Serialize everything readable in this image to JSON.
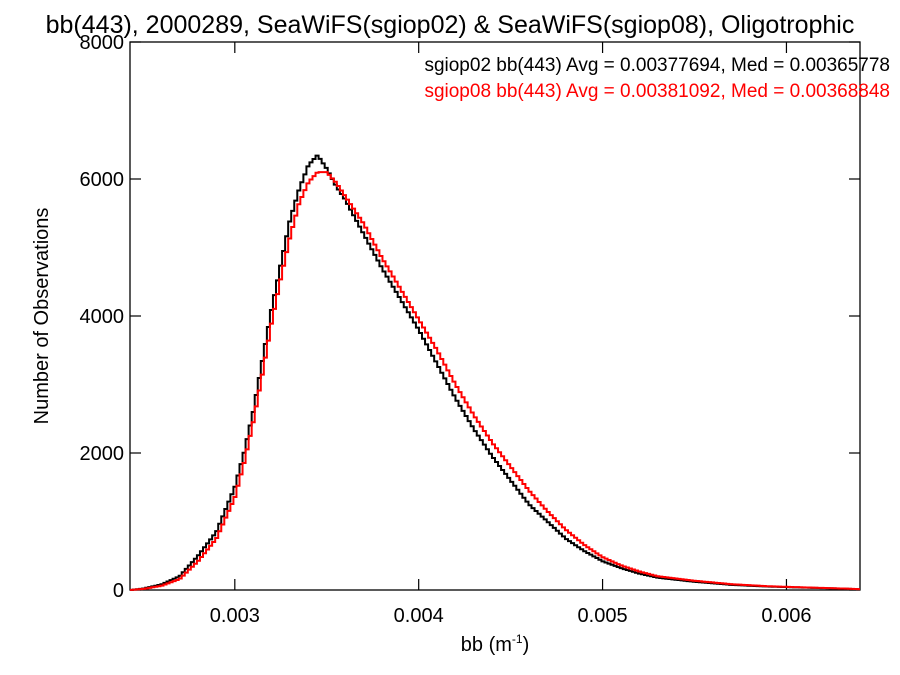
{
  "chart_data": {
    "type": "line",
    "title": "bb(443), 2000289, SeaWiFS(sgiop02) & SeaWiFS(sgiop08), Oligotrophic",
    "xlabel_main": "bb (m",
    "xlabel_sup": "-1",
    "xlabel_close": ")",
    "ylabel": "Number of Observations",
    "xlim": [
      0.00243,
      0.0064
    ],
    "ylim": [
      0,
      8000
    ],
    "x_ticks": [
      0.003,
      0.004,
      0.005,
      0.006
    ],
    "x_tick_labels": [
      "0.003",
      "0.004",
      "0.005",
      "0.006"
    ],
    "y_ticks": [
      0,
      2000,
      4000,
      6000,
      8000
    ],
    "y_tick_labels": [
      "0",
      "2000",
      "4000",
      "6000",
      "8000"
    ],
    "grid": false,
    "legend_placement": "top-right",
    "series": [
      {
        "name": "sgiop02 bb(443) Avg = 0.00377694, Med = 0.00365778",
        "color": "#000000",
        "x": [
          0.00243,
          0.0025,
          0.0026,
          0.0027,
          0.0028,
          0.0029,
          0.003,
          0.00305,
          0.0031,
          0.00315,
          0.0032,
          0.00325,
          0.0033,
          0.00335,
          0.0034,
          0.00345,
          0.0035,
          0.00355,
          0.0036,
          0.00365,
          0.0037,
          0.0038,
          0.0039,
          0.004,
          0.0041,
          0.0042,
          0.0043,
          0.0044,
          0.0045,
          0.0046,
          0.0047,
          0.0048,
          0.0049,
          0.005,
          0.0051,
          0.0052,
          0.0053,
          0.0055,
          0.0057,
          0.0059,
          0.0061,
          0.0063,
          0.0064
        ],
        "values": [
          0,
          20,
          80,
          200,
          500,
          850,
          1500,
          2000,
          2600,
          3350,
          4100,
          4750,
          5400,
          5850,
          6200,
          6350,
          6150,
          5900,
          5700,
          5450,
          5200,
          4700,
          4250,
          3800,
          3300,
          2800,
          2350,
          1950,
          1600,
          1250,
          1000,
          750,
          570,
          420,
          320,
          240,
          180,
          120,
          75,
          50,
          35,
          20,
          10
        ]
      },
      {
        "name": "sgiop08 bb(443) Avg = 0.00381092, Med = 0.00368848",
        "color": "#ff0000",
        "x": [
          0.00243,
          0.0025,
          0.0026,
          0.0027,
          0.0028,
          0.0029,
          0.003,
          0.00305,
          0.0031,
          0.00315,
          0.0032,
          0.00325,
          0.0033,
          0.00335,
          0.0034,
          0.00345,
          0.0035,
          0.00355,
          0.0036,
          0.00365,
          0.0037,
          0.0038,
          0.0039,
          0.004,
          0.0041,
          0.0042,
          0.0043,
          0.0044,
          0.0045,
          0.0046,
          0.0047,
          0.0048,
          0.0049,
          0.005,
          0.0051,
          0.0052,
          0.0053,
          0.0055,
          0.0057,
          0.0059,
          0.0061,
          0.0063,
          0.0064
        ],
        "values": [
          0,
          15,
          60,
          160,
          420,
          750,
          1350,
          1850,
          2450,
          3150,
          3900,
          4550,
          5150,
          5650,
          5950,
          6100,
          6100,
          5950,
          5750,
          5550,
          5350,
          4850,
          4400,
          3950,
          3500,
          3000,
          2550,
          2150,
          1800,
          1450,
          1150,
          880,
          660,
          480,
          360,
          270,
          200,
          135,
          85,
          55,
          38,
          22,
          12
        ]
      }
    ]
  }
}
